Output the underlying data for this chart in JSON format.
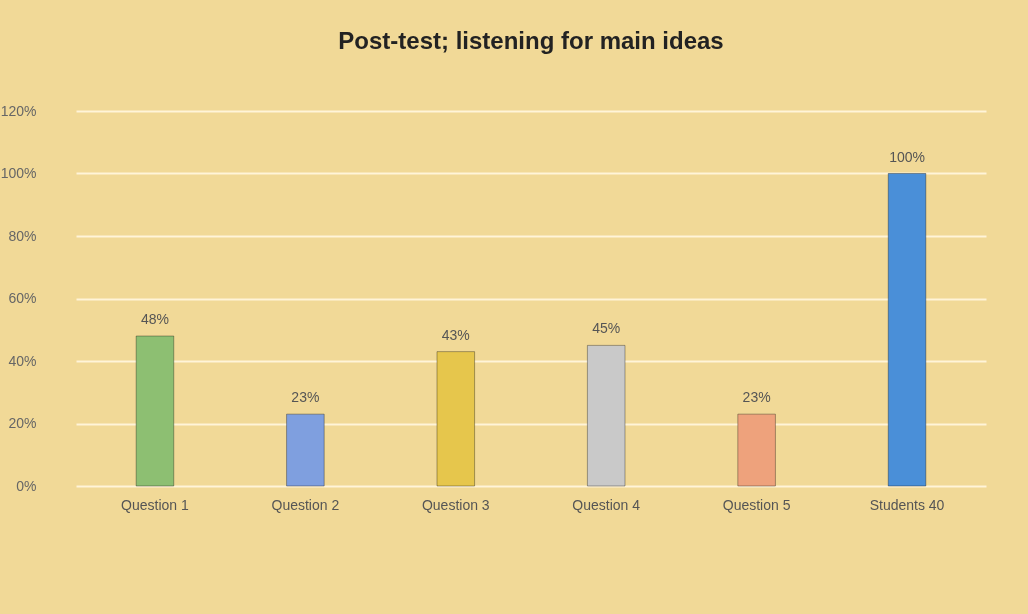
{
  "chart_data": {
    "type": "bar",
    "title": "Post-test; listening for main ideas",
    "categories": [
      "Question 1",
      "Question 2",
      "Question 3",
      "Question 4",
      "Question 5",
      "Students 40"
    ],
    "values": [
      48,
      23,
      43,
      45,
      23,
      100
    ],
    "value_labels": [
      "48%",
      "23%",
      "43%",
      "45%",
      "23%",
      "100%"
    ],
    "colors": [
      "#8dbf72",
      "#7f9fdf",
      "#e6c64c",
      "#c9c9c9",
      "#eea27c",
      "#4a8fd8"
    ],
    "ylim": [
      0,
      120
    ],
    "yticks": [
      {
        "value": 0,
        "label": "0%"
      },
      {
        "value": 20,
        "label": "20%"
      },
      {
        "value": 40,
        "label": "40%"
      },
      {
        "value": 60,
        "label": "60%"
      },
      {
        "value": 80,
        "label": "80%"
      },
      {
        "value": 100,
        "label": "100%"
      },
      {
        "value": 120,
        "label": "120%"
      }
    ],
    "grid": "y"
  }
}
